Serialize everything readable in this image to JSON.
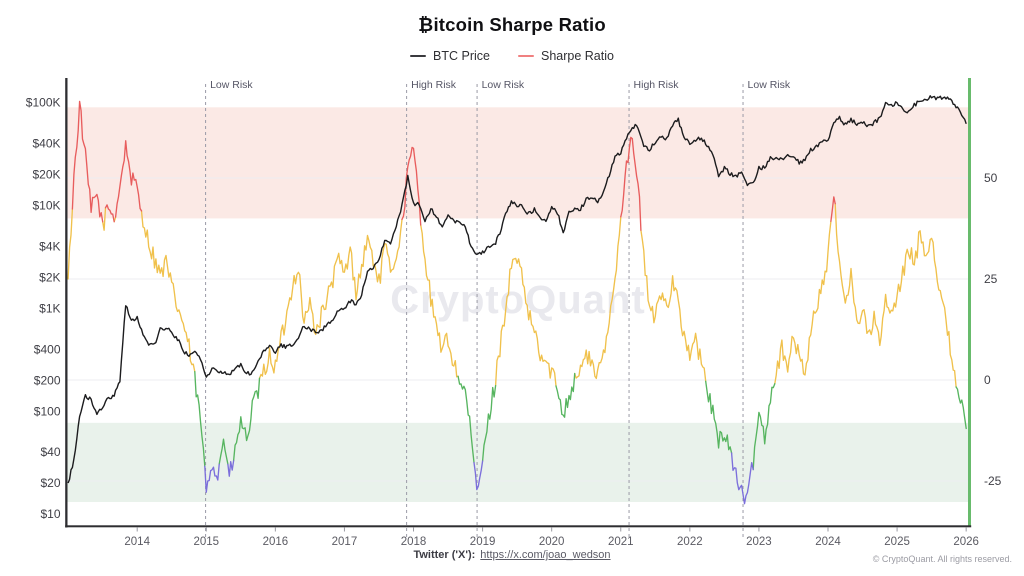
{
  "header": {
    "title": "₿itcoin Sharpe Ratio",
    "legend": [
      {
        "label": "BTC Price",
        "color": "#3a3a3e"
      },
      {
        "label": "Sharpe Ratio",
        "color": "#f08080"
      }
    ]
  },
  "watermark": {
    "text": "CryptoQuant"
  },
  "footer": {
    "twitter_label": "Twitter ('X'):",
    "twitter_link": "https://x.com/joao_wedson",
    "copyright": "© CryptoQuant. All rights reserved."
  },
  "chart_data": {
    "type": "line",
    "title": "₿itcoin Sharpe Ratio",
    "x_axis": {
      "ticks": [
        2014,
        2015,
        2016,
        2017,
        2018,
        2019,
        2020,
        2021,
        2022,
        2023,
        2024,
        2025,
        2026
      ],
      "range": [
        2013.0,
        2026.08
      ]
    },
    "y_left": {
      "scale": "log",
      "unit": "USD",
      "tick_values": [
        100000,
        40000,
        20000,
        10000,
        4000,
        2000,
        1000,
        400,
        200,
        100,
        40,
        20,
        10
      ],
      "tick_labels": [
        "$100K",
        "$40K",
        "$20K",
        "$10K",
        "$4K",
        "$2K",
        "$1K",
        "$400",
        "$200",
        "$100",
        "$40",
        "$20",
        "$10"
      ]
    },
    "y_right": {
      "scale": "linear",
      "ticks": [
        50,
        25,
        0,
        -25
      ],
      "range": [
        -36,
        73
      ]
    },
    "bands": [
      {
        "name": "high-risk-zone",
        "axis": "right",
        "from": 40,
        "to": 67.5,
        "fill": "#fbe9e5"
      },
      {
        "name": "low-risk-zone",
        "axis": "right",
        "from": -30.2,
        "to": -10.6,
        "fill": "#e9f2eb"
      }
    ],
    "risk_markers": [
      {
        "t": 2014.99,
        "label": "Low Risk"
      },
      {
        "t": 2017.9,
        "label": "High Risk"
      },
      {
        "t": 2018.92,
        "label": "Low Risk"
      },
      {
        "t": 2021.12,
        "label": "High Risk"
      },
      {
        "t": 2022.77,
        "label": "Low Risk"
      }
    ],
    "right_edge_bar_color": "#68bb6c",
    "series": [
      {
        "name": "BTC Price",
        "axis": "left",
        "color": "#1c1c1e",
        "start_year": 2013.0,
        "step_months": 1,
        "values": [
          20,
          33,
          90,
          139,
          128,
          97,
          106,
          135,
          141,
          200,
          1100,
          750,
          800,
          560,
          450,
          445,
          620,
          640,
          580,
          500,
          390,
          340,
          375,
          320,
          215,
          255,
          245,
          235,
          230,
          260,
          285,
          230,
          235,
          315,
          375,
          430,
          370,
          435,
          415,
          450,
          530,
          670,
          625,
          575,
          610,
          700,
          745,
          965,
          970,
          1180,
          1080,
          1350,
          2300,
          2480,
          2880,
          4700,
          4340,
          6450,
          9900,
          19000,
          10200,
          10300,
          6900,
          9250,
          7500,
          6400,
          7750,
          7000,
          6600,
          6300,
          4000,
          3250,
          3450,
          3850,
          4100,
          5300,
          8550,
          10800,
          10000,
          9600,
          8300,
          9150,
          7550,
          7200,
          9350,
          8550,
          5300,
          8650,
          9450,
          9150,
          11350,
          11650,
          10800,
          13800,
          19700,
          29000,
          33100,
          45200,
          58800,
          57750,
          37300,
          35000,
          41500,
          47100,
          43800,
          61300,
          67500,
          46200,
          38500,
          43200,
          45500,
          37650,
          31800,
          19000,
          23300,
          20050,
          19400,
          20500,
          16000,
          16550,
          23100,
          23150,
          28500,
          29250,
          27200,
          30450,
          29250,
          26000,
          26950,
          34650,
          37700,
          42250,
          42550,
          61150,
          71300,
          60650,
          67500,
          62700,
          64600,
          59000,
          63300,
          70200,
          96400,
          93400,
          102000,
          84350,
          82550,
          94200,
          104600,
          107100,
          115800,
          108200,
          114000,
          110000,
          96000,
          78000,
          62000
        ]
      },
      {
        "name": "Sharpe Ratio",
        "axis": "right",
        "start_year": 2013.0,
        "step_months": 1,
        "segment_colors": {
          "red": "#e85d5d",
          "yellow": "#f0c14c",
          "green": "#57b560",
          "blue": "#7c6fdb"
        },
        "thresholds": {
          "red_min": 40,
          "yellow_min": 0,
          "green_min": -20
        },
        "values": [
          25,
          50,
          68,
          55,
          42,
          46,
          38,
          43,
          40,
          48,
          58,
          50,
          47,
          40,
          34,
          30,
          26,
          29,
          23,
          18,
          14,
          8,
          0,
          -10,
          -27,
          -20,
          -24,
          -14,
          -24,
          -18,
          -10,
          -15,
          -7,
          -3,
          2,
          6,
          3,
          10,
          16,
          24,
          28,
          14,
          19,
          12,
          16,
          20,
          25,
          30,
          26,
          32,
          22,
          28,
          35,
          30,
          24,
          33,
          27,
          31,
          38,
          52,
          57,
          44,
          30,
          20,
          12,
          8,
          10,
          4,
          0,
          -3,
          -14,
          -28,
          -20,
          -10,
          -2,
          8,
          18,
          28,
          30,
          24,
          16,
          12,
          6,
          4,
          2,
          -2,
          -8,
          -4,
          0,
          3,
          6,
          4,
          1,
          6,
          14,
          26,
          40,
          55,
          59,
          48,
          30,
          18,
          15,
          22,
          18,
          25,
          20,
          10,
          6,
          10,
          4,
          -2,
          -8,
          -16,
          -12,
          -18,
          -23,
          -28,
          -30,
          -20,
          -8,
          -14,
          -4,
          2,
          8,
          4,
          10,
          6,
          2,
          12,
          18,
          24,
          30,
          46,
          28,
          20,
          26,
          14,
          18,
          10,
          16,
          8,
          20,
          16,
          20,
          26,
          33,
          28,
          37,
          31,
          36,
          26,
          18,
          10,
          2,
          -5,
          -12
        ]
      }
    ]
  }
}
